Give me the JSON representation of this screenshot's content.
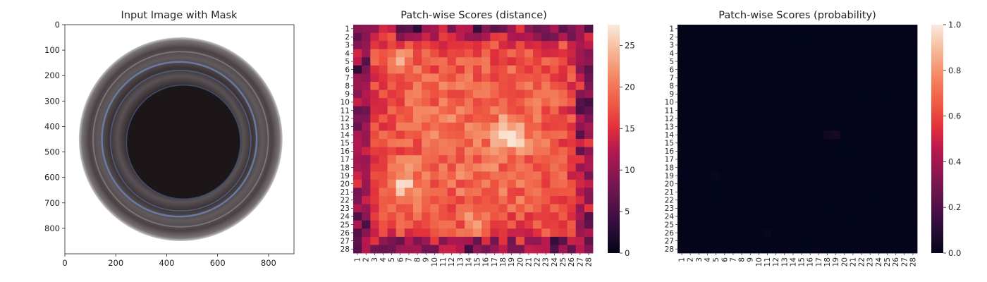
{
  "chart_data": [
    {
      "type": "image",
      "title": "Input Image with Mask",
      "xlim": [
        0,
        900
      ],
      "ylim": [
        900,
        0
      ],
      "xticks": [
        0,
        200,
        400,
        600,
        800
      ],
      "yticks": [
        0,
        100,
        200,
        300,
        400,
        500,
        600,
        700,
        800
      ]
    },
    {
      "type": "heatmap",
      "title": "Patch-wise Scores (distance)",
      "rows": 28,
      "cols": 28,
      "xticklabels": [
        "1",
        "2",
        "3",
        "4",
        "5",
        "6",
        "7",
        "8",
        "9",
        "10",
        "11",
        "12",
        "13",
        "14",
        "15",
        "16",
        "17",
        "18",
        "19",
        "20",
        "21",
        "22",
        "23",
        "24",
        "25",
        "26",
        "27",
        "28"
      ],
      "yticklabels": [
        "1",
        "2",
        "3",
        "4",
        "5",
        "6",
        "7",
        "8",
        "9",
        "10",
        "11",
        "12",
        "13",
        "14",
        "15",
        "16",
        "17",
        "18",
        "19",
        "20",
        "21",
        "22",
        "23",
        "24",
        "25",
        "26",
        "27",
        "28"
      ],
      "colorbar": {
        "min": 0,
        "max": 27.5,
        "ticks": [
          0,
          5,
          10,
          15,
          20,
          25
        ],
        "ticklabels": [
          "0",
          "5",
          "10",
          "15",
          "20",
          "25"
        ]
      },
      "colormap": "rocket",
      "hotspots": [
        {
          "row": 14,
          "col": 19,
          "value": 27
        },
        {
          "row": 20,
          "col": 6,
          "value": 26
        },
        {
          "row": 25,
          "col": 15,
          "value": 23
        },
        {
          "row": 5,
          "col": 6,
          "value": 23
        }
      ],
      "note_cold": "lower values (darker) along the border rows/columns"
    },
    {
      "type": "heatmap",
      "title": "Patch-wise Scores (probability)",
      "rows": 28,
      "cols": 28,
      "xticklabels": [
        "1",
        "2",
        "3",
        "4",
        "5",
        "6",
        "7",
        "8",
        "9",
        "10",
        "11",
        "12",
        "13",
        "14",
        "15",
        "16",
        "17",
        "18",
        "19",
        "20",
        "21",
        "22",
        "23",
        "24",
        "25",
        "26",
        "27",
        "28"
      ],
      "yticklabels": [
        "1",
        "2",
        "3",
        "4",
        "5",
        "6",
        "7",
        "8",
        "9",
        "10",
        "11",
        "12",
        "13",
        "14",
        "15",
        "16",
        "17",
        "18",
        "19",
        "20",
        "21",
        "22",
        "23",
        "24",
        "25",
        "26",
        "27",
        "28"
      ],
      "colorbar": {
        "min": 0.0,
        "max": 1.0,
        "ticks": [
          0.0,
          0.2,
          0.4,
          0.6,
          0.8,
          1.0
        ],
        "ticklabels": [
          "0.0",
          "0.2",
          "0.4",
          "0.6",
          "0.8",
          "1.0"
        ]
      },
      "colormap": "rocket",
      "typical_value": 0.0,
      "hotspots": [
        {
          "row": 14,
          "col": 18,
          "value": 0.04
        },
        {
          "row": 14,
          "col": 19,
          "value": 0.05
        },
        {
          "row": 19,
          "col": 5,
          "value": 0.02
        },
        {
          "row": 26,
          "col": 11,
          "value": 0.02
        }
      ]
    }
  ]
}
